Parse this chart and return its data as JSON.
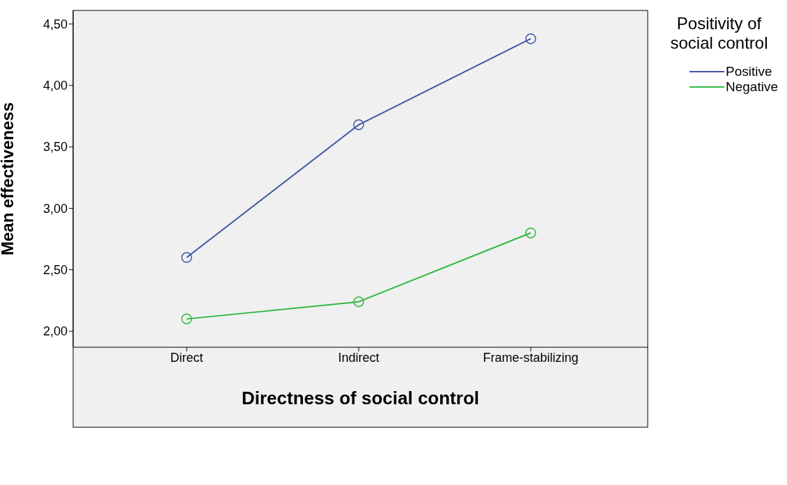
{
  "chart_data": {
    "type": "line",
    "xlabel": "Directness of social control",
    "ylabel": "Mean effectiveness",
    "legend_title": "Positivity of social control",
    "categories": [
      "Direct",
      "Indirect",
      "Frame-stabilizing"
    ],
    "series": [
      {
        "name": "Positive",
        "color": "#3f55a6",
        "values": [
          2.6,
          3.68,
          4.38
        ]
      },
      {
        "name": "Negative",
        "color": "#2fb83f",
        "values": [
          2.1,
          2.24,
          2.8
        ]
      }
    ],
    "ylim": [
      1.87,
      4.61
    ],
    "yticks": [
      {
        "value": 2,
        "label": "2,00"
      },
      {
        "value": 2.5,
        "label": "2,50"
      },
      {
        "value": 3,
        "label": "3,00"
      },
      {
        "value": 3.5,
        "label": "3,50"
      },
      {
        "value": 4,
        "label": "4,00"
      },
      {
        "value": 4.5,
        "label": "4,50"
      }
    ],
    "grid": false,
    "legend": "top right",
    "marker": "circle",
    "line_style": "solid"
  }
}
